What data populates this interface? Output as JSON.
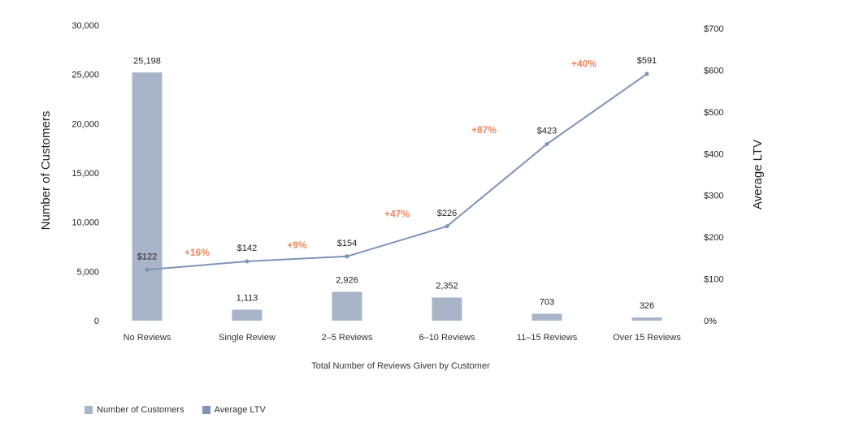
{
  "chart_data": {
    "type": "bar+line",
    "xlabel": "Total Number of Reviews Given by Customer",
    "ylabel": "Number of Customers",
    "y2label": "Average LTV",
    "categories": [
      "No Reviews",
      "Single Review",
      "2–5 Reviews",
      "6–10 Reviews",
      "11–15 Reviews",
      "Over 15 Reviews"
    ],
    "ylim": [
      0,
      30000
    ],
    "yticks": [
      "0",
      "5,000",
      "10,000",
      "15,000",
      "20,000",
      "25,000",
      "30,000"
    ],
    "y2lim": [
      0,
      700
    ],
    "y2ticks": [
      "0%",
      "$100",
      "$200",
      "$300",
      "$400",
      "$500",
      "$600",
      "$700"
    ],
    "series": [
      {
        "name": "Number of Customers",
        "type": "bar",
        "color": "#a8b5c8",
        "values": [
          25198,
          1113,
          2926,
          2352,
          703,
          326
        ],
        "labels": [
          "25,198",
          "1,113",
          "2,926",
          "2,352",
          "703",
          "326"
        ]
      },
      {
        "name": "Average LTV",
        "type": "line",
        "axis": "right",
        "color": "#7d94b5",
        "values": [
          122,
          142,
          154,
          226,
          423,
          591
        ],
        "labels": [
          "$122",
          "$142",
          "$154",
          "$226",
          "$423",
          "$591"
        ]
      }
    ],
    "annotations": [
      "+16%",
      "+9%",
      "+47%",
      "+87%",
      "+40%"
    ],
    "annotation_color": "#f0875e",
    "legend": "bottom-left",
    "grid": false
  }
}
